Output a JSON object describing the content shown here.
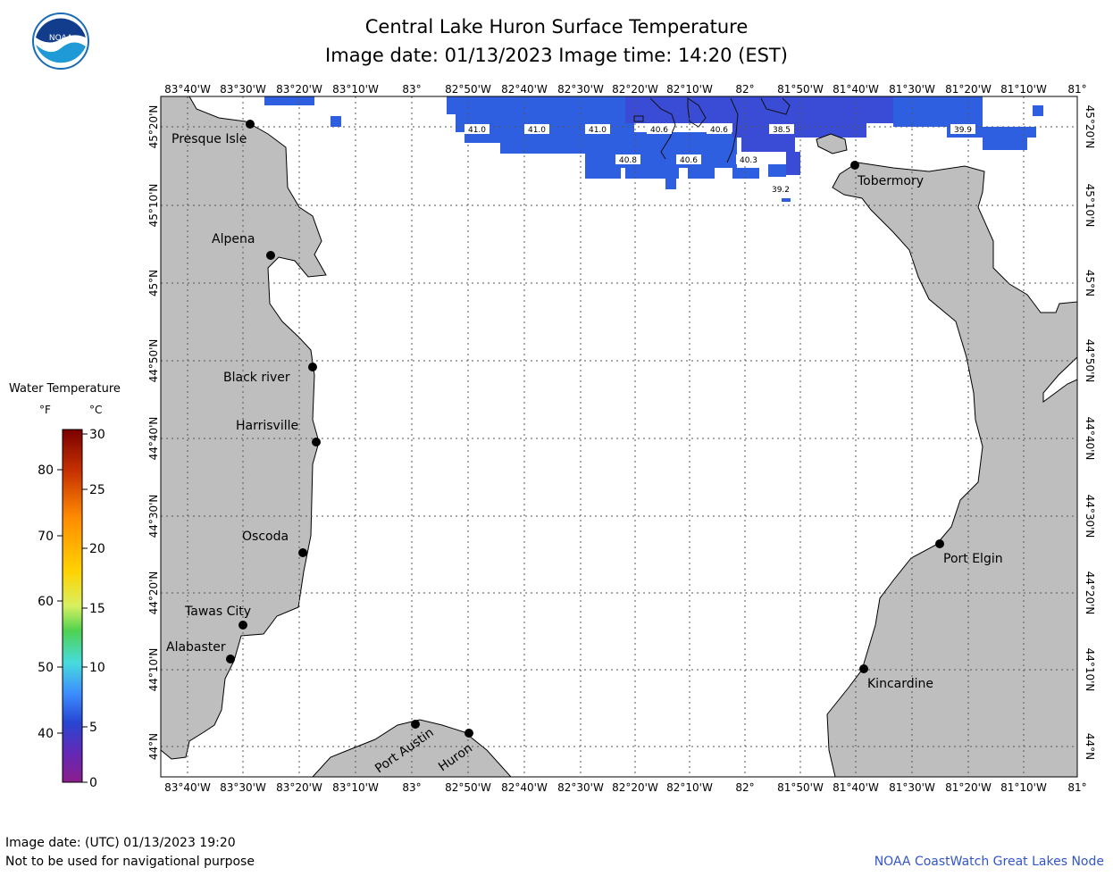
{
  "header": {
    "title": "Central Lake Huron Surface Temperature",
    "subtitle": "Image date: 01/13/2023     Image time: 14:20 (EST)"
  },
  "logo": {
    "text": "NOAA",
    "icon": "noaa-logo-icon"
  },
  "axes": {
    "lon_labels": [
      "83°40'W",
      "83°30'W",
      "83°20'W",
      "83°10'W",
      "83°",
      "82°50'W",
      "82°40'W",
      "82°30'W",
      "82°20'W",
      "82°10'W",
      "82°",
      "81°50'W",
      "81°40'W",
      "81°30'W",
      "81°20'W",
      "81°10'W",
      "81°"
    ],
    "lat_labels": [
      "45°20'N",
      "45°10'N",
      "45°N",
      "44°50'N",
      "44°40'N",
      "44°30'N",
      "44°20'N",
      "44°10'N",
      "44°N"
    ]
  },
  "places": [
    {
      "name": "Presque Isle"
    },
    {
      "name": "Alpena"
    },
    {
      "name": "Black river"
    },
    {
      "name": "Harrisville"
    },
    {
      "name": "Oscoda"
    },
    {
      "name": "Tawas City"
    },
    {
      "name": "Alabaster"
    },
    {
      "name": "Port Austin"
    },
    {
      "name": "Huron"
    },
    {
      "name": "Tobermory"
    },
    {
      "name": "Port Elgin"
    },
    {
      "name": "Kincardine"
    }
  ],
  "temperature_labels": [
    "41.0",
    "41.0",
    "41.0",
    "40.6",
    "40.6",
    "38.5",
    "39.9",
    "40.8",
    "40.6",
    "40.3",
    "39.2"
  ],
  "legend": {
    "title": "Water Temperature",
    "unit_f": "°F",
    "unit_c": "°C",
    "f_ticks": [
      "80",
      "70",
      "60",
      "50",
      "40"
    ],
    "c_ticks": [
      "30",
      "25",
      "20",
      "15",
      "10",
      "5",
      "0"
    ],
    "colors": [
      "#7a0000",
      "#c83200",
      "#ff8c00",
      "#ffd200",
      "#f0f064",
      "#50d250",
      "#46dcdc",
      "#3c8cff",
      "#2846d2",
      "#6428b4",
      "#8c1e8c"
    ]
  },
  "footer": {
    "date_utc": "Image date: (UTC) 01/13/2023  19:20",
    "disclaimer": "Not to be used for navigational purpose",
    "credit": "NOAA CoastWatch Great Lakes Node"
  },
  "colors": {
    "land": "#bebebe",
    "water_cold": "#2e5fe0",
    "water_colder": "#3a4bd6",
    "grid": "#555555"
  }
}
